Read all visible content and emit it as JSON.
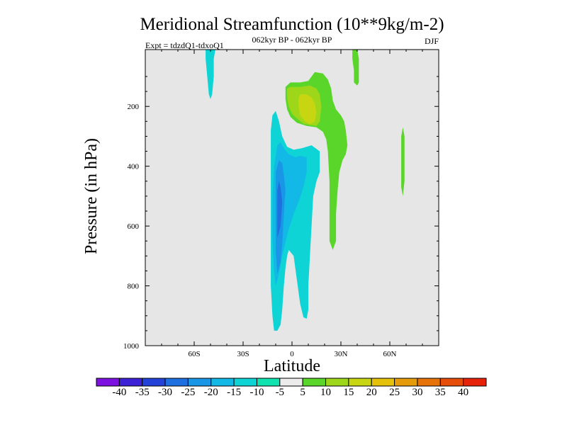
{
  "chart_data": {
    "type": "heatmap",
    "title": "Meridional Streamfunction (10**9kg/m-2)",
    "subtitle_center": "062kyr BP - 062kyr BP",
    "subtitle_left": "Expt = tdzdQ1-tdxoQ1",
    "subtitle_right": "DJF",
    "xlabel": "Latitude",
    "ylabel": "Pressure (in hPa)",
    "xlim": [
      -90,
      90
    ],
    "ylim": [
      1000,
      10
    ],
    "x_ticks": [
      {
        "value": -60,
        "label": "60S"
      },
      {
        "value": -30,
        "label": "30S"
      },
      {
        "value": 0,
        "label": "0"
      },
      {
        "value": 30,
        "label": "30N"
      },
      {
        "value": 60,
        "label": "60N"
      }
    ],
    "y_ticks": [
      {
        "value": 200,
        "label": "200"
      },
      {
        "value": 400,
        "label": "400"
      },
      {
        "value": 600,
        "label": "600"
      },
      {
        "value": 800,
        "label": "800"
      },
      {
        "value": 1000,
        "label": "1000"
      }
    ],
    "background_color": "#e6e6e6",
    "colorbar": {
      "levels": [
        "-40",
        "-35",
        "-30",
        "-25",
        "-20",
        "-15",
        "-10",
        "-5",
        "5",
        "10",
        "15",
        "20",
        "25",
        "30",
        "35",
        "40"
      ],
      "colors": [
        "#7d12e0",
        "#3c21d6",
        "#2342d8",
        "#1e6fe0",
        "#1a96e6",
        "#12b8e6",
        "#0fd4d6",
        "#10e2b0",
        "#ececec",
        "#5ad62a",
        "#9ed61a",
        "#c8d612",
        "#e6c10a",
        "#e69b0a",
        "#e6730a",
        "#e64c0a",
        "#e6230a"
      ]
    },
    "contours": [
      {
        "name": "southern-cell-level-neg10",
        "level": -10,
        "lon_lat_p": [
          [
            -9,
            950
          ],
          [
            -7,
            930
          ],
          [
            -6,
            880
          ],
          [
            -5,
            800
          ],
          [
            -4,
            740
          ],
          [
            -3,
            700
          ],
          [
            -2,
            680
          ],
          [
            1,
            700
          ],
          [
            3,
            780
          ],
          [
            5,
            860
          ],
          [
            7,
            905
          ],
          [
            9,
            910
          ],
          [
            10,
            880
          ],
          [
            10,
            800
          ],
          [
            11,
            700
          ],
          [
            12,
            600
          ],
          [
            13,
            500
          ],
          [
            15,
            450
          ],
          [
            17,
            420
          ],
          [
            17,
            350
          ],
          [
            12,
            330
          ],
          [
            6,
            340
          ],
          [
            1,
            345
          ],
          [
            -3,
            335
          ],
          [
            -6,
            300
          ],
          [
            -8,
            250
          ],
          [
            -10,
            215
          ],
          [
            -12,
            230
          ],
          [
            -13,
            280
          ],
          [
            -13,
            400
          ],
          [
            -13,
            600
          ],
          [
            -13,
            800
          ],
          [
            -12,
            900
          ],
          [
            -11,
            950
          ]
        ]
      },
      {
        "name": "southern-cell-level-neg15",
        "level": -15,
        "lon_lat_p": [
          [
            -10,
            800
          ],
          [
            -8,
            760
          ],
          [
            -6,
            700
          ],
          [
            -2,
            610
          ],
          [
            1,
            560
          ],
          [
            4,
            520
          ],
          [
            7,
            470
          ],
          [
            9,
            420
          ],
          [
            9,
            370
          ],
          [
            5,
            365
          ],
          [
            2,
            370
          ],
          [
            -2,
            360
          ],
          [
            -5,
            340
          ],
          [
            -7,
            320
          ],
          [
            -9,
            330
          ],
          [
            -11,
            400
          ],
          [
            -12,
            500
          ],
          [
            -12,
            650
          ],
          [
            -11,
            750
          ]
        ]
      },
      {
        "name": "southern-cell-level-neg20",
        "level": -20,
        "lon_lat_p": [
          [
            -9,
            760
          ],
          [
            -7,
            720
          ],
          [
            -6,
            660
          ],
          [
            -5,
            560
          ],
          [
            -4,
            480
          ],
          [
            -5,
            430
          ],
          [
            -6,
            390
          ],
          [
            -8,
            380
          ],
          [
            -10,
            420
          ],
          [
            -10,
            550
          ],
          [
            -10,
            680
          ]
        ]
      },
      {
        "name": "southern-cell-level-neg25",
        "level": -25,
        "lon_lat_p": [
          [
            -9,
            640
          ],
          [
            -7,
            600
          ],
          [
            -6,
            520
          ],
          [
            -7,
            470
          ],
          [
            -8,
            450
          ],
          [
            -9,
            480
          ],
          [
            -9,
            560
          ]
        ]
      },
      {
        "name": "southern-cell-level-neg15-b",
        "level": -15,
        "lon_lat_p": [
          [
            2,
            460
          ],
          [
            5,
            440
          ],
          [
            8,
            420
          ],
          [
            9,
            390
          ],
          [
            6,
            380
          ],
          [
            3,
            385
          ],
          [
            1,
            410
          ]
        ]
      },
      {
        "name": "northern-cell-level-5",
        "level": 5,
        "lon_lat_p": [
          [
            25,
            680
          ],
          [
            27,
            650
          ],
          [
            27,
            560
          ],
          [
            28,
            480
          ],
          [
            29,
            420
          ],
          [
            31,
            380
          ],
          [
            33,
            360
          ],
          [
            34,
            330
          ],
          [
            33,
            280
          ],
          [
            32,
            250
          ],
          [
            30,
            230
          ],
          [
            27,
            210
          ],
          [
            25,
            180
          ],
          [
            24,
            140
          ],
          [
            22,
            110
          ],
          [
            19,
            90
          ],
          [
            14,
            85
          ],
          [
            12,
            100
          ],
          [
            10,
            115
          ],
          [
            5,
            120
          ],
          [
            -1,
            120
          ],
          [
            -4,
            135
          ],
          [
            -4,
            175
          ],
          [
            -3,
            210
          ],
          [
            -1,
            235
          ],
          [
            3,
            255
          ],
          [
            9,
            265
          ],
          [
            15,
            270
          ],
          [
            19,
            285
          ],
          [
            21,
            310
          ],
          [
            22,
            350
          ],
          [
            23,
            450
          ],
          [
            23,
            550
          ],
          [
            23,
            650
          ]
        ]
      },
      {
        "name": "northern-cell-level-10",
        "level": 10,
        "lon_lat_p": [
          [
            -3,
            140
          ],
          [
            -1,
            135
          ],
          [
            5,
            135
          ],
          [
            11,
            130
          ],
          [
            15,
            140
          ],
          [
            17,
            160
          ],
          [
            18,
            200
          ],
          [
            17,
            250
          ],
          [
            15,
            265
          ],
          [
            11,
            262
          ],
          [
            7,
            258
          ],
          [
            3,
            240
          ],
          [
            0,
            225
          ],
          [
            -2,
            200
          ],
          [
            -3,
            170
          ]
        ]
      },
      {
        "name": "northern-cell-level-15",
        "level": 15,
        "lon_lat_p": [
          [
            5,
            160
          ],
          [
            9,
            160
          ],
          [
            12,
            170
          ],
          [
            14,
            190
          ],
          [
            15,
            220
          ],
          [
            14,
            250
          ],
          [
            11,
            260
          ],
          [
            8,
            250
          ],
          [
            5,
            230
          ],
          [
            4,
            200
          ],
          [
            4,
            175
          ]
        ]
      },
      {
        "name": "polar-cell-north-level-5",
        "level": 5,
        "lon_lat_p": [
          [
            40,
            130
          ],
          [
            41,
            120
          ],
          [
            41,
            80
          ],
          [
            41,
            40
          ],
          [
            40,
            10
          ],
          [
            37,
            10
          ],
          [
            37,
            40
          ],
          [
            38,
            80
          ],
          [
            38,
            120
          ]
        ]
      },
      {
        "name": "southern-high-level-neg10",
        "level": -10,
        "lon_lat_p": [
          [
            -50,
            175
          ],
          [
            -49,
            160
          ],
          [
            -48,
            100
          ],
          [
            -48,
            40
          ],
          [
            -47,
            10
          ],
          [
            -53,
            10
          ],
          [
            -53,
            40
          ],
          [
            -52,
            100
          ],
          [
            -51,
            160
          ]
        ]
      },
      {
        "name": "northern-thin-level-5",
        "level": 5,
        "lon_lat_p": [
          [
            68,
            500
          ],
          [
            69,
            450
          ],
          [
            69,
            380
          ],
          [
            69,
            300
          ],
          [
            68,
            270
          ],
          [
            67,
            300
          ],
          [
            67,
            400
          ],
          [
            67,
            470
          ]
        ]
      }
    ]
  }
}
